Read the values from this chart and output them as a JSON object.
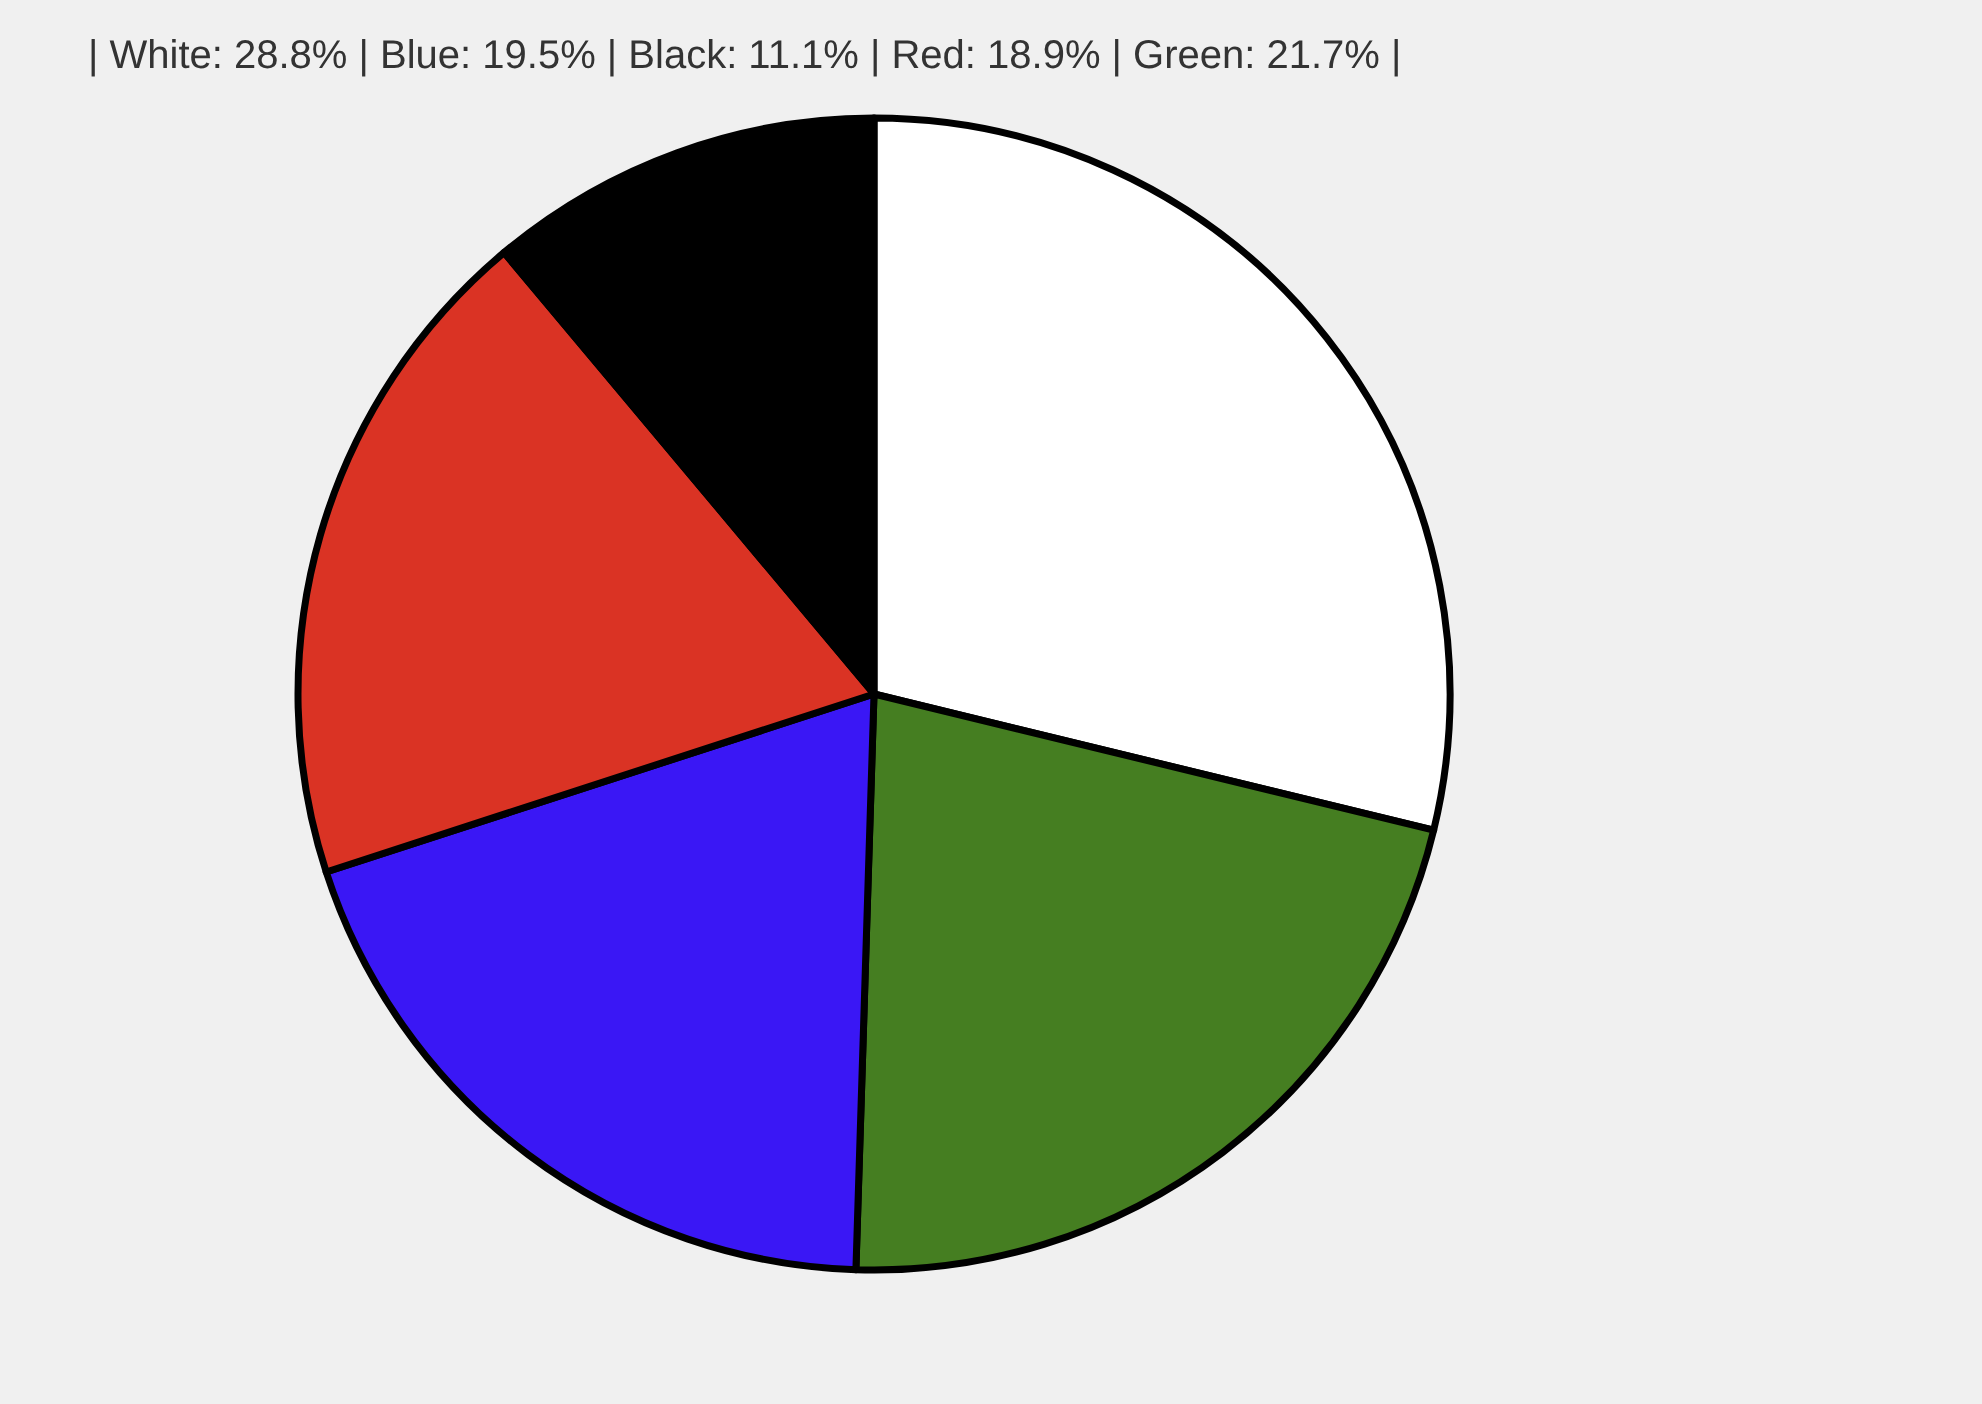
{
  "chart_data": {
    "type": "pie",
    "title": "| White: 28.8% | Blue: 19.5% | Black: 11.1% | Red: 18.9% | Green: 21.7% |",
    "categories": [
      null,
      null,
      null,
      null,
      null
    ],
    "values": [
      28.8,
      21.7,
      19.5,
      18.9,
      11.1
    ],
    "colors": [
      "#ffffff",
      "#457e21",
      "#3a17f5",
      "#da3324",
      "#000000"
    ]
  }
}
